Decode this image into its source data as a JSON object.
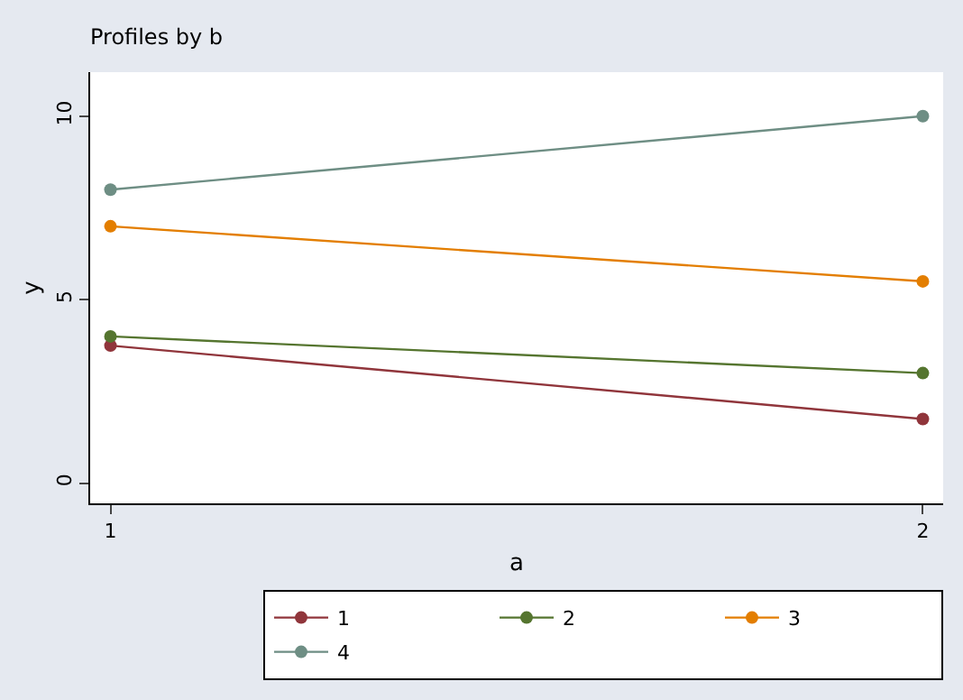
{
  "chart_data": {
    "type": "line",
    "title": "Profiles by b",
    "xlabel": "a",
    "ylabel": "y",
    "x": [
      1,
      2
    ],
    "series": [
      {
        "name": "1",
        "color": "#90353b",
        "values": [
          3.75,
          1.75
        ]
      },
      {
        "name": "2",
        "color": "#55752f",
        "values": [
          4,
          3
        ]
      },
      {
        "name": "3",
        "color": "#e37e00",
        "values": [
          7,
          5.5
        ]
      },
      {
        "name": "4",
        "color": "#6e8e84",
        "values": [
          8,
          10
        ]
      }
    ],
    "xlim": [
      0.975,
      2.025
    ],
    "xticks": [
      1,
      2
    ],
    "ylim": [
      -0.55,
      11.2
    ],
    "yticks": [
      0,
      5,
      10
    ],
    "grid": false,
    "legend": "bottom right",
    "marker": "circle",
    "line_style": "solid"
  }
}
